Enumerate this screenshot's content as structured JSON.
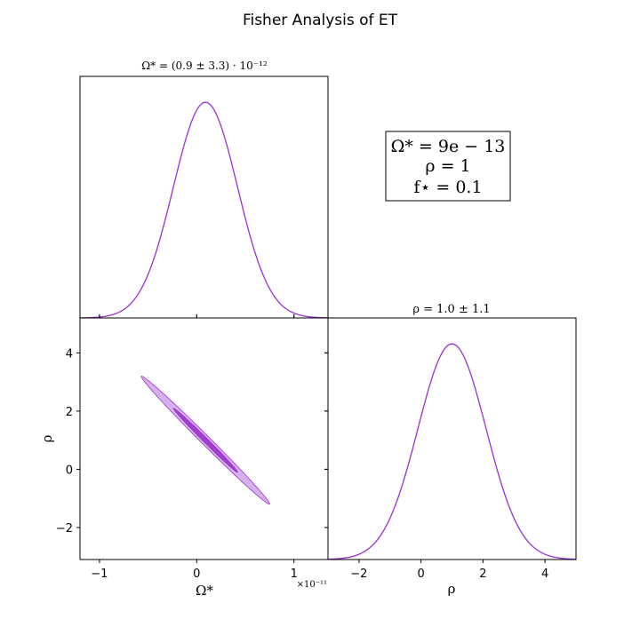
{
  "figure": {
    "title": "Fisher Analysis of ET"
  },
  "legend_box": {
    "lines": [
      "Ω* = 9e − 13",
      "ρ = 1",
      "f⋆ = 0.1"
    ],
    "placement": "top-right"
  },
  "chart_data": [
    {
      "type": "line",
      "panel": "marginal-omega",
      "title": "Ω* = (0.9 ± 3.3) · 10⁻¹²",
      "distribution": "gaussian",
      "mean": 0.09,
      "sigma": 0.33,
      "x_scale_label": "×10⁻¹¹",
      "xlim": [
        -1.2,
        1.35
      ],
      "ylim": [
        0,
        1.12
      ],
      "color": "#9932CC",
      "xticks": [
        -1,
        0,
        1
      ],
      "show_tick_labels": false
    },
    {
      "type": "line",
      "panel": "marginal-rho",
      "title": "ρ = 1.0 ± 1.1",
      "distribution": "gaussian",
      "mean": 1.0,
      "sigma": 1.1,
      "xlim": [
        -3,
        5
      ],
      "ylim": [
        0,
        1.12
      ],
      "xlabel": "ρ",
      "xticks": [
        -2,
        0,
        2,
        4
      ],
      "xtick_labels": [
        "−2",
        "0",
        "2",
        "4"
      ],
      "color": "#9932CC"
    },
    {
      "type": "scatter",
      "panel": "joint-omega-rho",
      "subtype": "confidence-ellipses",
      "xlabel": "Ω*",
      "ylabel": "ρ",
      "x_scale_label": "×10⁻¹¹",
      "xlim": [
        -1.2,
        1.35
      ],
      "ylim": [
        -3.1,
        5.2
      ],
      "xticks": [
        -1,
        0,
        1
      ],
      "xtick_labels": [
        "−1",
        "0",
        "1"
      ],
      "yticks": [
        -2,
        0,
        2,
        4
      ],
      "ytick_labels": [
        "−2",
        "0",
        "2",
        "4"
      ],
      "mean": [
        0.09,
        1.0
      ],
      "sigma": [
        0.33,
        1.1
      ],
      "correlation": -0.995,
      "contours": [
        {
          "level": "2-sigma",
          "n_sigma": 2.0,
          "color": "#9932CC",
          "opacity": 0.38
        },
        {
          "level": "1-sigma",
          "n_sigma": 1.0,
          "color": "#9932CC",
          "opacity": 0.9
        }
      ]
    }
  ]
}
